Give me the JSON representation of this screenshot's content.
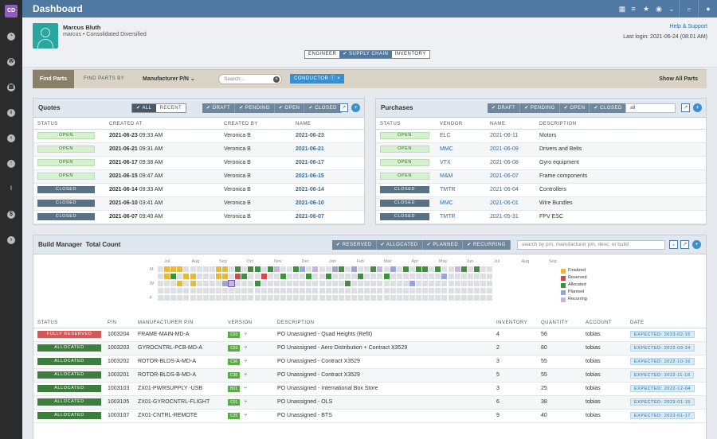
{
  "app": {
    "logo": "CD",
    "title": "Dashboard"
  },
  "sidebar": {
    "icons": [
      "pie-chart-icon",
      "radiation-icon",
      "grid-icon",
      "info-icon",
      "back-arrow-icon",
      "upload-icon",
      "thermometer-icon",
      "dollar-icon",
      "forward-arrow-icon"
    ]
  },
  "user": {
    "name": "Marcus Bluth",
    "sub": "marcus • Consolidated Diversified",
    "help": "Help & Support",
    "last_login": "Last login: 2021-06-24 (08:01 AM)"
  },
  "views": [
    "ENGINEER",
    "✔ SUPPLY CHAIN",
    "INVENTORY"
  ],
  "find": {
    "button": "Find Parts",
    "by_label": "FIND PARTS BY",
    "by_value": "Manufacturer P/N",
    "search_placeholder": "Search...",
    "chip": "CONDUCTOR",
    "show_all": "Show All Parts"
  },
  "quotes": {
    "title": "Quotes",
    "toggle": [
      "✔ ALL",
      "RECENT"
    ],
    "filters": [
      "✔ DRAFT",
      "✔ PENDING",
      "✔ OPEN",
      "✔ CLOSED"
    ],
    "columns": [
      "STATUS",
      "CREATED AT",
      "CREATED BY",
      "NAME"
    ],
    "rows": [
      {
        "status": "OPEN",
        "created": "2021-06-23",
        "time": "09:33 AM",
        "by": "Veronica B",
        "name": "2021-06-23"
      },
      {
        "status": "OPEN",
        "created": "2021-06-21",
        "time": "09:31 AM",
        "by": "Veronica B",
        "name": "2021-06-21"
      },
      {
        "status": "OPEN",
        "created": "2021-06-17",
        "time": "09:38 AM",
        "by": "Veronica B",
        "name": "2021-06-17"
      },
      {
        "status": "OPEN",
        "created": "2021-06-15",
        "time": "09:47 AM",
        "by": "Veronica B",
        "name": "2021-06-15"
      },
      {
        "status": "CLOSED",
        "created": "2021-06-14",
        "time": "09:33 AM",
        "by": "Veronica B",
        "name": "2021-06-14"
      },
      {
        "status": "CLOSED",
        "created": "2021-06-10",
        "time": "03:41 AM",
        "by": "Veronica B",
        "name": "2021-06-10"
      },
      {
        "status": "CLOSED",
        "created": "2021-06-07",
        "time": "09:40 AM",
        "by": "Veronica B",
        "name": "2021-06-07"
      }
    ]
  },
  "purchases": {
    "title": "Purchases",
    "filters": [
      "✔ DRAFT",
      "✔ PENDING",
      "✔ OPEN",
      "✔ CLOSED"
    ],
    "search_value": "all",
    "columns": [
      "STATUS",
      "VENDOR",
      "NAME",
      "DESCRIPTION"
    ],
    "rows": [
      {
        "status": "OPEN",
        "vendor": "ELC",
        "name": "2021-06-11",
        "desc": "Motors"
      },
      {
        "status": "OPEN",
        "vendor": "MMC",
        "name": "2021-06-09",
        "desc": "Drivers and Belts"
      },
      {
        "status": "OPEN",
        "vendor": "VTX",
        "name": "2021-06-08",
        "desc": "Gyro equipment"
      },
      {
        "status": "OPEN",
        "vendor": "M&M",
        "name": "2021-06-07",
        "desc": "Frame components"
      },
      {
        "status": "CLOSED",
        "vendor": "TMTR",
        "name": "2021-06-04",
        "desc": "Controllers"
      },
      {
        "status": "CLOSED",
        "vendor": "MMC",
        "name": "2021-06-01",
        "desc": "Wire Bundles"
      },
      {
        "status": "CLOSED",
        "vendor": "TMTR",
        "name": "2021-05-31",
        "desc": "FPV ESC"
      }
    ]
  },
  "build": {
    "title": "Build Manager",
    "subtitle": "Total Count",
    "filters": [
      "✔ RESERVED",
      "✔ ALLOCATED",
      "✔ PLANNED",
      "✔ RECURRING"
    ],
    "search_placeholder": "search by p/n, manufacturer p/n, desc. or build",
    "months": [
      "Jul",
      "Aug",
      "Sep",
      "Oct",
      "Nov",
      "Dec",
      "Jan",
      "Feb",
      "Mar",
      "Apr",
      "May",
      "Jun",
      "Jul",
      "Aug",
      "Sep"
    ],
    "days": [
      "M",
      "W",
      "F"
    ],
    "legend": [
      {
        "label": "Finalized",
        "color": "#e8b934"
      },
      {
        "label": "Reserved",
        "color": "#cc4b4b"
      },
      {
        "label": "Allocated",
        "color": "#3f8f3f"
      },
      {
        "label": "Planned",
        "color": "#9aa4d6"
      },
      {
        "label": "Recurring",
        "color": "#c8b4dc"
      }
    ],
    "columns": [
      "STATUS",
      "P/N",
      "MANUFACTURER P/N",
      "VERSION",
      "DESCRIPTION",
      "INVENTORY",
      "QUANTITY",
      "ACCOUNT",
      "DATE"
    ],
    "rows": [
      {
        "status": "FULLY RESERVED",
        "pn": "1003204",
        "mpn": "FRAME-MAIN-MD-A",
        "ver": "C03",
        "desc": "PO Unassigned - Quad Heights (Refit)",
        "inv": "4",
        "qty": "56",
        "acct": "tobias",
        "date": "EXPECTED: 2023-02-15"
      },
      {
        "status": "ALLOCATED",
        "pn": "1003203",
        "mpn": "GYROCNTRL-PCB-MD-A",
        "ver": "C03",
        "desc": "PO Unassigned - Aero Distribution + Contract X3529",
        "inv": "2",
        "qty": "80",
        "acct": "tobias",
        "date": "EXPECTED: 2022-09-24"
      },
      {
        "status": "ALLOCATED",
        "pn": "1003202",
        "mpn": "ROTOR-BLDS-A-MD-A",
        "ver": "C36",
        "desc": "PO Unassigned - Contract X3529",
        "inv": "3",
        "qty": "55",
        "acct": "tobias",
        "date": "EXPECTED: 2022-10-16"
      },
      {
        "status": "ALLOCATED",
        "pn": "1003201",
        "mpn": "ROTOR-BLDS-B-MD-A",
        "ver": "C36",
        "desc": "PO Unassigned - Contract X3529",
        "inv": "5",
        "qty": "55",
        "acct": "tobias",
        "date": "EXPECTED: 2022-11-16"
      },
      {
        "status": "ALLOCATED",
        "pn": "1003103",
        "mpn": "ZX01-PWRSUPPLY -USB",
        "ver": "B01",
        "desc": "PO Unassigned - International Box Store",
        "inv": "3",
        "qty": "25",
        "acct": "tobias",
        "date": "EXPECTED: 2022-12-04"
      },
      {
        "status": "ALLOCATED",
        "pn": "1003105",
        "mpn": "ZX01-GYROCNTRL-FLIGHT",
        "ver": "C01",
        "desc": "PO Unassigned - OLS",
        "inv": "6",
        "qty": "38",
        "acct": "tobias",
        "date": "EXPECTED: 2023-01-15"
      },
      {
        "status": "ALLOCATED",
        "pn": "1003107",
        "mpn": "ZX01-CNTRL-REMOTE",
        "ver": "C25",
        "desc": "PO Unassigned - BTS",
        "inv": "9",
        "qty": "40",
        "acct": "tobias",
        "date": "EXPECTED: 2023-01-17"
      }
    ]
  }
}
